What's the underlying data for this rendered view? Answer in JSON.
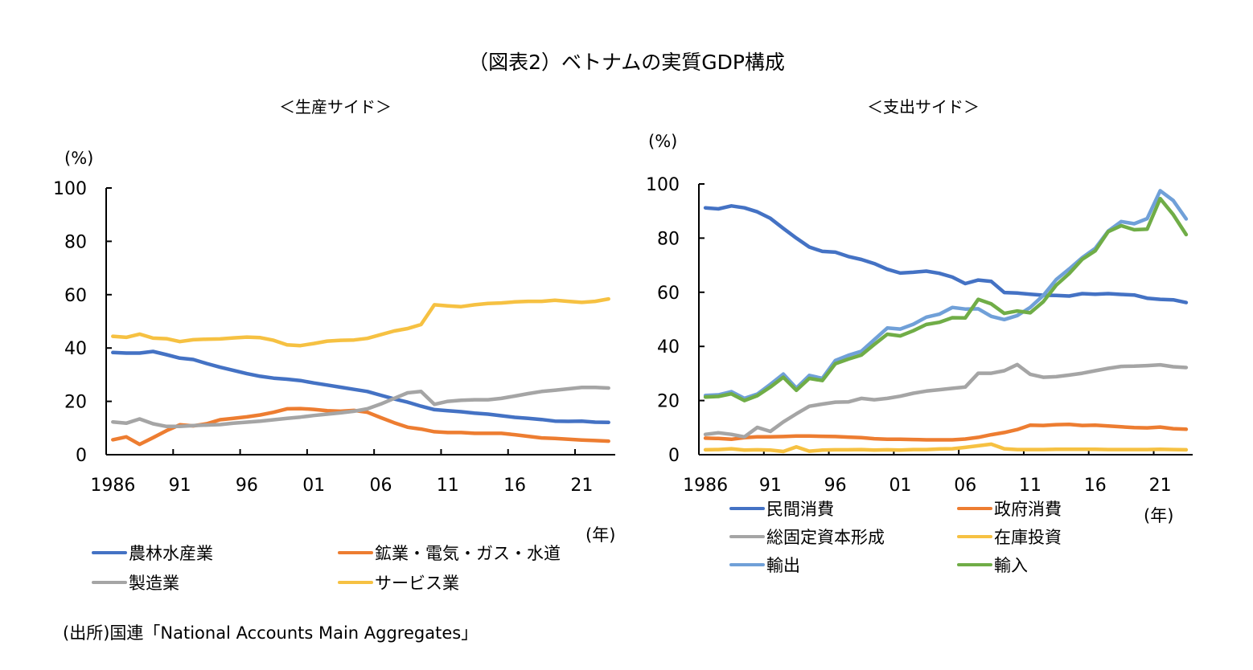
{
  "title": "（図表2）ベトナムの実質GDP構成",
  "source": "(出所)国連「National Accounts Main Aggregates」",
  "chart_data": [
    {
      "type": "line",
      "title": "＜生産サイド＞",
      "ylabel": "(%)",
      "xlabel": "(年)",
      "ylim": [
        0,
        100
      ],
      "yticks": [
        "0",
        "20",
        "40",
        "60",
        "80",
        "100"
      ],
      "xtick_labels": [
        "1986",
        "91",
        "96",
        "01",
        "06",
        "11",
        "16",
        "21"
      ],
      "x": [
        1986,
        1987,
        1988,
        1989,
        1990,
        1991,
        1992,
        1993,
        1994,
        1995,
        1996,
        1997,
        1998,
        1999,
        2000,
        2001,
        2002,
        2003,
        2004,
        2005,
        2006,
        2007,
        2008,
        2009,
        2010,
        2011,
        2012,
        2013,
        2014,
        2015,
        2016,
        2017,
        2018,
        2019,
        2020,
        2021,
        2022,
        2023
      ],
      "grid": false,
      "legend_position": "bottom",
      "series": [
        {
          "name": "農林水産業",
          "color": "#4472C4",
          "values": [
            38.3,
            38.1,
            38.1,
            38.7,
            37.5,
            36.2,
            35.7,
            34.2,
            32.8,
            31.6,
            30.4,
            29.4,
            28.7,
            28.3,
            27.8,
            26.9,
            26.1,
            25.3,
            24.5,
            23.7,
            22.3,
            20.9,
            19.7,
            18.2,
            16.9,
            16.5,
            16.1,
            15.6,
            15.2,
            14.6,
            14.0,
            13.6,
            13.2,
            12.6,
            12.5,
            12.6,
            12.2,
            12.1
          ]
        },
        {
          "name": "鉱業・電気・ガス・水道",
          "color": "#ED7D31",
          "values": [
            5.6,
            6.7,
            3.9,
            6.4,
            9.0,
            11.2,
            10.8,
            11.6,
            13.1,
            13.6,
            14.2,
            14.9,
            15.9,
            17.2,
            17.3,
            17.0,
            16.5,
            16.3,
            16.6,
            15.9,
            13.9,
            12.0,
            10.3,
            9.6,
            8.6,
            8.3,
            8.3,
            8.0,
            8.0,
            8.0,
            7.5,
            6.9,
            6.3,
            6.1,
            5.8,
            5.5,
            5.3,
            5.1
          ]
        },
        {
          "name": "製造業",
          "color": "#A5A5A5",
          "values": [
            12.3,
            11.8,
            13.4,
            11.6,
            10.6,
            10.6,
            10.9,
            11.1,
            11.3,
            11.8,
            12.2,
            12.6,
            13.1,
            13.6,
            14.1,
            14.7,
            15.2,
            15.7,
            16.3,
            17.2,
            19.0,
            21.1,
            23.2,
            23.7,
            18.9,
            20.0,
            20.4,
            20.6,
            20.6,
            21.1,
            22.0,
            22.9,
            23.7,
            24.2,
            24.7,
            25.2,
            25.2,
            25.0
          ]
        },
        {
          "name": "サービス業",
          "color": "#F6C142",
          "values": [
            44.4,
            44.0,
            45.2,
            43.7,
            43.5,
            42.4,
            43.1,
            43.3,
            43.4,
            43.8,
            44.1,
            43.9,
            42.9,
            41.2,
            40.9,
            41.7,
            42.6,
            42.9,
            43.0,
            43.6,
            45.0,
            46.4,
            47.3,
            48.8,
            56.2,
            55.8,
            55.5,
            56.2,
            56.7,
            56.9,
            57.3,
            57.5,
            57.5,
            57.9,
            57.5,
            57.1,
            57.5,
            58.4
          ]
        }
      ]
    },
    {
      "type": "line",
      "title": "＜支出サイド＞",
      "ylabel": "(%)",
      "xlabel": "(年)",
      "ylim": [
        0,
        100
      ],
      "yticks": [
        "0",
        "20",
        "40",
        "60",
        "80",
        "100"
      ],
      "xtick_labels": [
        "1986",
        "91",
        "96",
        "01",
        "06",
        "11",
        "16",
        "21"
      ],
      "x": [
        1986,
        1987,
        1988,
        1989,
        1990,
        1991,
        1992,
        1993,
        1994,
        1995,
        1996,
        1997,
        1998,
        1999,
        2000,
        2001,
        2002,
        2003,
        2004,
        2005,
        2006,
        2007,
        2008,
        2009,
        2010,
        2011,
        2012,
        2013,
        2014,
        2015,
        2016,
        2017,
        2018,
        2019,
        2020,
        2021,
        2022,
        2023
      ],
      "grid": false,
      "legend_position": "bottom",
      "series": [
        {
          "name": "民間消費",
          "color": "#4472C4",
          "values": [
            91.2,
            90.8,
            91.9,
            91.2,
            89.7,
            87.3,
            83.6,
            80.0,
            76.7,
            75.1,
            74.8,
            73.2,
            72.1,
            70.6,
            68.5,
            67.1,
            67.4,
            67.8,
            67.0,
            65.6,
            63.2,
            64.5,
            64.0,
            59.9,
            59.7,
            59.3,
            58.9,
            58.8,
            58.6,
            59.5,
            59.3,
            59.5,
            59.2,
            59.0,
            57.8,
            57.4,
            57.2,
            56.2
          ]
        },
        {
          "name": "政府消費",
          "color": "#ED7D31",
          "values": [
            6.1,
            6.0,
            5.7,
            6.3,
            6.6,
            6.6,
            6.7,
            6.9,
            6.9,
            6.8,
            6.7,
            6.5,
            6.3,
            5.9,
            5.7,
            5.7,
            5.6,
            5.5,
            5.5,
            5.5,
            5.8,
            6.4,
            7.4,
            8.2,
            9.3,
            10.9,
            10.8,
            11.1,
            11.2,
            10.8,
            10.9,
            10.6,
            10.3,
            10.0,
            9.9,
            10.2,
            9.6,
            9.4
          ]
        },
        {
          "name": "総固定資本形成",
          "color": "#A5A5A5",
          "values": [
            7.5,
            8.1,
            7.5,
            6.6,
            10.1,
            8.6,
            12.1,
            15.1,
            17.9,
            18.7,
            19.4,
            19.5,
            20.8,
            20.3,
            20.8,
            21.6,
            22.7,
            23.5,
            24.0,
            24.5,
            25.0,
            30.1,
            30.1,
            31.0,
            33.3,
            29.7,
            28.6,
            28.8,
            29.4,
            30.1,
            31.0,
            31.9,
            32.6,
            32.7,
            32.9,
            33.2,
            32.5,
            32.2
          ]
        },
        {
          "name": "在庫投資",
          "color": "#F6C142",
          "values": [
            1.8,
            1.9,
            2.2,
            1.7,
            1.8,
            1.7,
            1.2,
            2.9,
            1.3,
            1.7,
            1.8,
            1.8,
            1.9,
            1.7,
            1.8,
            1.7,
            1.9,
            1.9,
            2.1,
            2.2,
            2.7,
            3.3,
            3.9,
            2.2,
            1.9,
            1.9,
            1.9,
            2.0,
            2.0,
            2.0,
            2.0,
            1.9,
            1.9,
            1.9,
            1.9,
            2.0,
            1.9,
            1.8
          ]
        },
        {
          "name": "輸出",
          "color": "#70A0D8",
          "values": [
            21.9,
            22.1,
            23.3,
            20.8,
            22.4,
            26.0,
            29.8,
            24.6,
            29.3,
            28.2,
            34.8,
            36.7,
            38.2,
            42.5,
            46.8,
            46.4,
            48.2,
            50.8,
            51.9,
            54.4,
            53.8,
            53.9,
            51.1,
            49.9,
            51.4,
            54.4,
            58.8,
            64.7,
            68.6,
            72.8,
            76.2,
            82.6,
            86.1,
            85.3,
            87.2,
            97.5,
            93.9,
            87.1
          ]
        },
        {
          "name": "輸入",
          "color": "#70AD47",
          "values": [
            21.3,
            21.5,
            22.5,
            20.0,
            21.8,
            25.0,
            28.6,
            23.8,
            28.2,
            27.4,
            33.6,
            35.3,
            36.8,
            40.7,
            44.5,
            43.9,
            45.8,
            48.1,
            48.9,
            50.6,
            50.5,
            57.4,
            55.7,
            52.2,
            53.1,
            52.4,
            56.5,
            62.6,
            66.9,
            72.2,
            75.3,
            82.4,
            84.6,
            83.1,
            83.3,
            94.6,
            88.7,
            81.3
          ]
        }
      ]
    }
  ]
}
